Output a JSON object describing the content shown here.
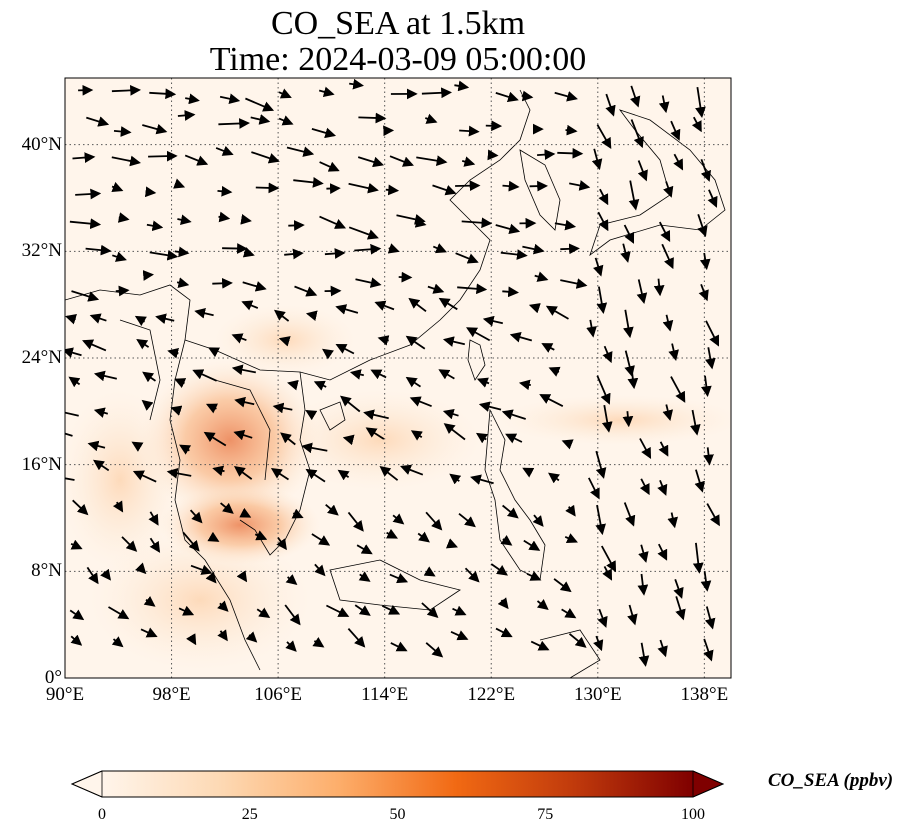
{
  "title": {
    "line1": "CO_SEA at 1.5km",
    "line2": "Time: 2024-03-09 05:00:00"
  },
  "map": {
    "lon_range": [
      90,
      140
    ],
    "lat_range": [
      0,
      45
    ],
    "lat_ticks": [
      {
        "value": 40,
        "label": "40°N"
      },
      {
        "value": 32,
        "label": "32°N"
      },
      {
        "value": 24,
        "label": "24°N"
      },
      {
        "value": 16,
        "label": "16°N"
      },
      {
        "value": 8,
        "label": "8°N"
      },
      {
        "value": 0,
        "label": "0°"
      }
    ],
    "lon_ticks": [
      {
        "value": 90,
        "label": "90°E"
      },
      {
        "value": 98,
        "label": "98°E"
      },
      {
        "value": 106,
        "label": "106°E"
      },
      {
        "value": 114,
        "label": "114°E"
      },
      {
        "value": 122,
        "label": "122°E"
      },
      {
        "value": 130,
        "label": "130°E"
      },
      {
        "value": 138,
        "label": "138°E"
      }
    ],
    "gridlines": true,
    "background_color": "#fff5eb"
  },
  "colorbar": {
    "label": "CO_SEA (ppbv)",
    "min": 0,
    "max": 100,
    "ticks": [
      "0",
      "25",
      "50",
      "75",
      "100"
    ],
    "extend": "both",
    "colormap": [
      "#fff5eb",
      "#fdd9b4",
      "#fdae6b",
      "#f16913",
      "#c03a0c",
      "#7f0000"
    ]
  }
}
